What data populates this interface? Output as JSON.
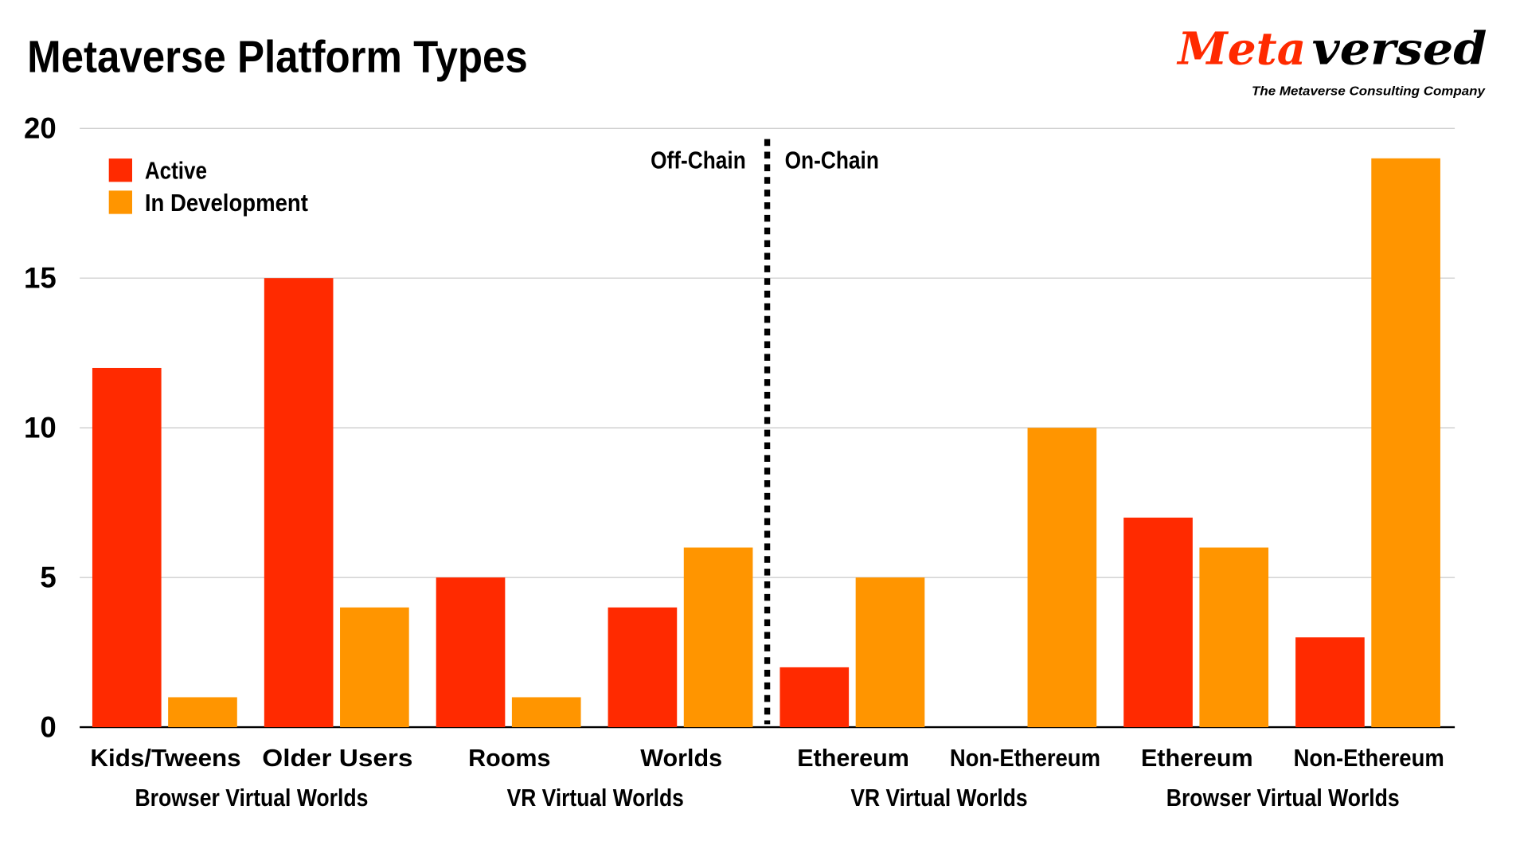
{
  "chart_data": {
    "type": "bar",
    "title": "Metaverse Platform Types",
    "categories": [
      "Kids/Tweens",
      "Older Users",
      "Rooms",
      "Worlds",
      "Ethereum",
      "Non-Ethereum",
      "Ethereum",
      "Non-Ethereum"
    ],
    "category_groups": [
      {
        "label": "Browser Virtual Worlds",
        "span": [
          0,
          1
        ]
      },
      {
        "label": "VR Virtual Worlds",
        "span": [
          2,
          3
        ]
      },
      {
        "label": "VR Virtual Worlds",
        "span": [
          4,
          5
        ]
      },
      {
        "label": "Browser Virtual Worlds",
        "span": [
          6,
          7
        ]
      }
    ],
    "series": [
      {
        "name": "Active",
        "color": "#ff2a00",
        "values": [
          12,
          15,
          5,
          4,
          2,
          0,
          7,
          3
        ]
      },
      {
        "name": "In Development",
        "color": "#ff9500",
        "values": [
          1,
          4,
          1,
          6,
          5,
          10,
          6,
          19
        ]
      }
    ],
    "ylim": [
      0,
      20
    ],
    "yticks": [
      0,
      5,
      10,
      15,
      20
    ],
    "grid": true,
    "legend_position": "top-left",
    "annotations": {
      "divider_after_index": 3,
      "left": "Off-Chain",
      "right": "On-Chain"
    },
    "xlabel": "",
    "ylabel": ""
  },
  "logo": {
    "text_red": "Meta",
    "text_black": "versed",
    "tagline": "The Metaverse Consulting Company"
  }
}
